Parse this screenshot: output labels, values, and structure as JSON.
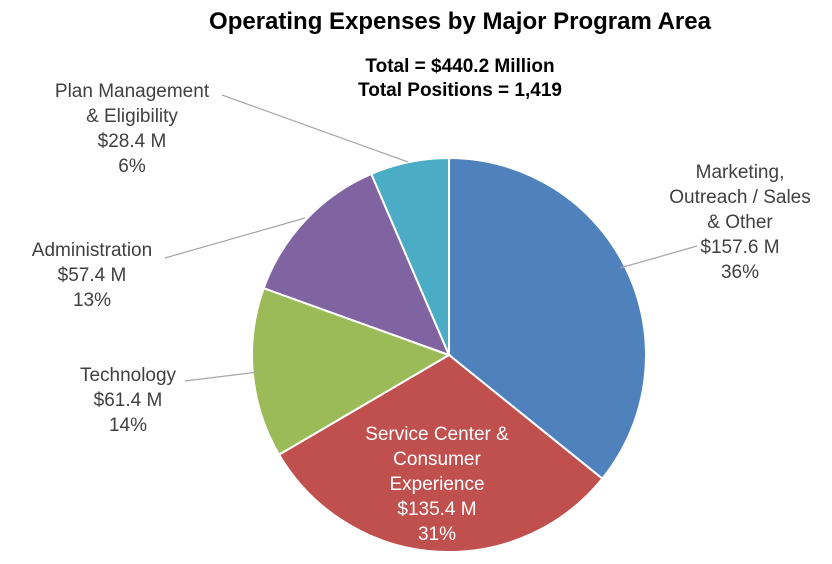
{
  "chart_data": {
    "type": "pie",
    "title": "Operating Expenses by Major Program Area",
    "subtitle_lines": [
      "Total  =  $440.2 Million",
      "Total Positions = 1,419"
    ],
    "slices": [
      {
        "label_lines": [
          "Marketing,",
          "Outreach / Sales",
          "& Other"
        ],
        "value_text": "$157.6 M",
        "pct_text": "36%",
        "value": 157.6,
        "color": "#4f81bd"
      },
      {
        "label_lines": [
          "Service Center &",
          "Consumer",
          "Experience"
        ],
        "value_text": "$135.4 M",
        "pct_text": "31%",
        "value": 135.4,
        "color": "#c0504d"
      },
      {
        "label_lines": [
          "Technology"
        ],
        "value_text": "$61.4 M",
        "pct_text": "14%",
        "value": 61.4,
        "color": "#9bbb59"
      },
      {
        "label_lines": [
          "Administration"
        ],
        "value_text": "$57.4 M",
        "pct_text": "13%",
        "value": 57.4,
        "color": "#8064a2"
      },
      {
        "label_lines": [
          "Plan Management",
          "& Eligibility"
        ],
        "value_text": "$28.4 M",
        "pct_text": "6%",
        "value": 28.4,
        "color": "#4bacc6"
      }
    ]
  }
}
